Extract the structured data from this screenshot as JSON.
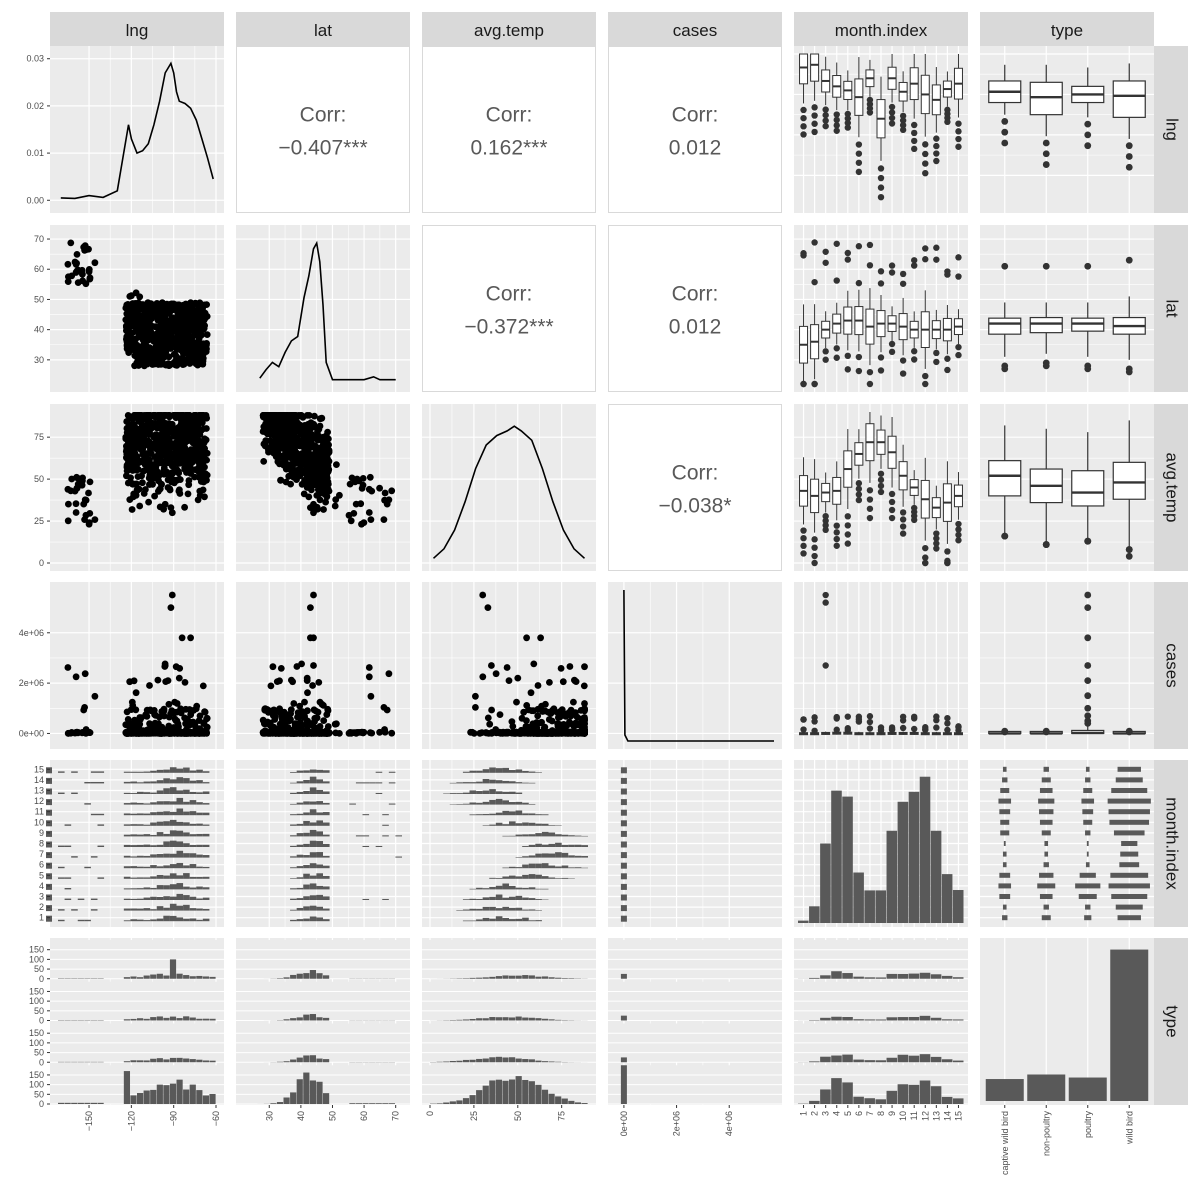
{
  "chart_data": {
    "type": "scatter-matrix",
    "variables": [
      "lng",
      "lat",
      "avg.temp",
      "cases",
      "month.index",
      "type"
    ],
    "type_categories": [
      "captive wild bird",
      "non-poultry",
      "poultry",
      "wild bird"
    ],
    "correlations": [
      {
        "row": "lng",
        "col": "lat",
        "label": "Corr:",
        "value": "−0.407***"
      },
      {
        "row": "lng",
        "col": "avg.temp",
        "label": "Corr:",
        "value": "0.162***"
      },
      {
        "row": "lng",
        "col": "cases",
        "label": "Corr:",
        "value": "0.012"
      },
      {
        "row": "lat",
        "col": "avg.temp",
        "label": "Corr:",
        "value": "−0.372***"
      },
      {
        "row": "lat",
        "col": "cases",
        "label": "Corr:",
        "value": "0.012"
      },
      {
        "row": "avg.temp",
        "col": "cases",
        "label": "Corr:",
        "value": "−0.038*"
      }
    ],
    "axes": {
      "lng": {
        "range": [
          -172,
          -60
        ],
        "ticks": [
          -150,
          -120,
          -90,
          -60
        ]
      },
      "lat": {
        "range": [
          22,
          72
        ],
        "ticks": [
          30,
          40,
          50,
          60,
          70
        ]
      },
      "avg.temp": {
        "range": [
          0,
          90
        ],
        "ticks": [
          0,
          25,
          50,
          75
        ]
      },
      "cases": {
        "range": [
          -300000,
          5700000
        ],
        "ticks": [
          0,
          2000000,
          4000000
        ],
        "tick_labels": [
          "0e+00",
          "2e+06",
          "4e+06"
        ]
      },
      "month.index": {
        "categories": [
          "1",
          "2",
          "3",
          "4",
          "5",
          "6",
          "7",
          "8",
          "9",
          "10",
          "11",
          "12",
          "13",
          "14",
          "15"
        ]
      },
      "density_lng": {
        "range": [
          -0.001,
          0.031
        ],
        "ticks": [
          0,
          0.01,
          0.02,
          0.03
        ],
        "tick_labels": [
          "0.00",
          "0.01",
          "0.02",
          "0.03"
        ]
      },
      "type_counts": {
        "range": [
          0,
          200
        ],
        "ticks": [
          0,
          50,
          100,
          150
        ],
        "tick_labels": [
          "0",
          "50",
          "100",
          "150"
        ]
      }
    },
    "lng_density": {
      "x": [
        -170,
        -160,
        -150,
        -140,
        -130,
        -126,
        -122,
        -120,
        -116,
        -112,
        -108,
        -104,
        -100,
        -96,
        -92,
        -90,
        -88,
        -86,
        -82,
        -78,
        -74,
        -70,
        -66,
        -62
      ],
      "y": [
        0.0005,
        0.0004,
        0.001,
        0.0006,
        0.002,
        0.009,
        0.016,
        0.013,
        0.01,
        0.0105,
        0.012,
        0.016,
        0.021,
        0.027,
        0.029,
        0.027,
        0.023,
        0.021,
        0.0205,
        0.0195,
        0.017,
        0.013,
        0.009,
        0.0045
      ]
    },
    "lat_density": {
      "x": [
        27,
        29,
        31,
        33,
        35,
        37,
        39,
        41,
        42.5,
        44,
        45,
        46,
        47,
        48,
        50,
        55,
        60,
        63,
        65,
        70
      ],
      "y": [
        0.004,
        0.01,
        0.015,
        0.012,
        0.022,
        0.03,
        0.033,
        0.06,
        0.075,
        0.094,
        0.098,
        0.085,
        0.055,
        0.015,
        0.003,
        0.003,
        0.003,
        0.005,
        0.003,
        0.003
      ]
    },
    "temp_density": {
      "x": [
        2,
        8,
        14,
        20,
        26,
        32,
        38,
        44,
        48,
        52,
        58,
        64,
        70,
        76,
        82,
        88
      ],
      "y": [
        0.001,
        0.003,
        0.007,
        0.013,
        0.02,
        0.025,
        0.027,
        0.028,
        0.029,
        0.028,
        0.026,
        0.02,
        0.013,
        0.007,
        0.003,
        0.001
      ]
    },
    "month_counts": {
      "categories": [
        "1",
        "2",
        "3",
        "4",
        "5",
        "6",
        "7",
        "8",
        "9",
        "10",
        "11",
        "12",
        "13",
        "14",
        "15"
      ],
      "values": [
        6,
        42,
        200,
        333,
        318,
        127,
        82,
        82,
        232,
        305,
        330,
        368,
        232,
        123,
        83
      ]
    },
    "type_counts": {
      "categories": [
        "captive wild bird",
        "non-poultry",
        "poultry",
        "wild bird"
      ],
      "values": [
        29,
        35,
        31,
        200
      ]
    },
    "boxplots_by_type": {
      "lng": [
        {
          "q1": -96,
          "med": -88,
          "q3": -80,
          "lo": -105,
          "hi": -68
        },
        {
          "q1": -105,
          "med": -92,
          "q3": -81,
          "lo": -121,
          "hi": -68
        },
        {
          "q1": -96,
          "med": -90,
          "q3": -84,
          "lo": -107,
          "hi": -70
        },
        {
          "q1": -107,
          "med": -91,
          "q3": -80,
          "lo": -123,
          "hi": -67
        }
      ],
      "lat": [
        {
          "q1": 38.5,
          "med": 42.0,
          "q3": 43.8,
          "lo": 31,
          "hi": 49
        },
        {
          "q1": 39.0,
          "med": 42.0,
          "q3": 44.0,
          "lo": 32,
          "hi": 49
        },
        {
          "q1": 39.5,
          "med": 42.0,
          "q3": 43.8,
          "lo": 31,
          "hi": 49
        },
        {
          "q1": 38.5,
          "med": 41.2,
          "q3": 44.0,
          "lo": 30,
          "hi": 51
        }
      ],
      "avg.temp": [
        {
          "q1": 40,
          "med": 52,
          "q3": 61,
          "lo": 17,
          "hi": 82
        },
        {
          "q1": 36,
          "med": 46,
          "q3": 56,
          "lo": 12,
          "hi": 80
        },
        {
          "q1": 34,
          "med": 42,
          "q3": 55,
          "lo": 14,
          "hi": 78
        },
        {
          "q1": 38,
          "med": 48,
          "q3": 60,
          "lo": 9,
          "hi": 85
        }
      ],
      "cases": [
        {
          "q1": 0,
          "med": 0,
          "q3": 20000,
          "lo": 0,
          "hi": 40000
        },
        {
          "q1": 0,
          "med": 0,
          "q3": 20000,
          "lo": 0,
          "hi": 40000
        },
        {
          "q1": 0,
          "med": 20000,
          "q3": 120000,
          "lo": 0,
          "hi": 280000
        },
        {
          "q1": 0,
          "med": 0,
          "q3": 10000,
          "lo": 0,
          "hi": 30000
        }
      ]
    }
  }
}
